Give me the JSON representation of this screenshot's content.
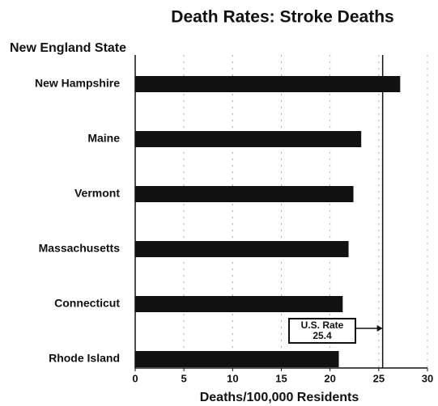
{
  "chart_data": {
    "type": "bar",
    "orientation": "horizontal",
    "title": "Death Rates: Stroke Deaths",
    "y_label": "New England State",
    "x_label": "Deaths/100,000 Residents",
    "categories": [
      "New Hampshire",
      "Maine",
      "Vermont",
      "Massachusetts",
      "Connecticut",
      "Rhode Island"
    ],
    "values": [
      27.2,
      23.2,
      22.4,
      21.9,
      21.3,
      20.9
    ],
    "color": "#111111",
    "xlim": [
      0,
      30
    ],
    "xticks": [
      0,
      5,
      10,
      15,
      20,
      25,
      30
    ],
    "grid": true,
    "reference_line": {
      "value": 25.4,
      "label": "U.S. Rate"
    }
  }
}
